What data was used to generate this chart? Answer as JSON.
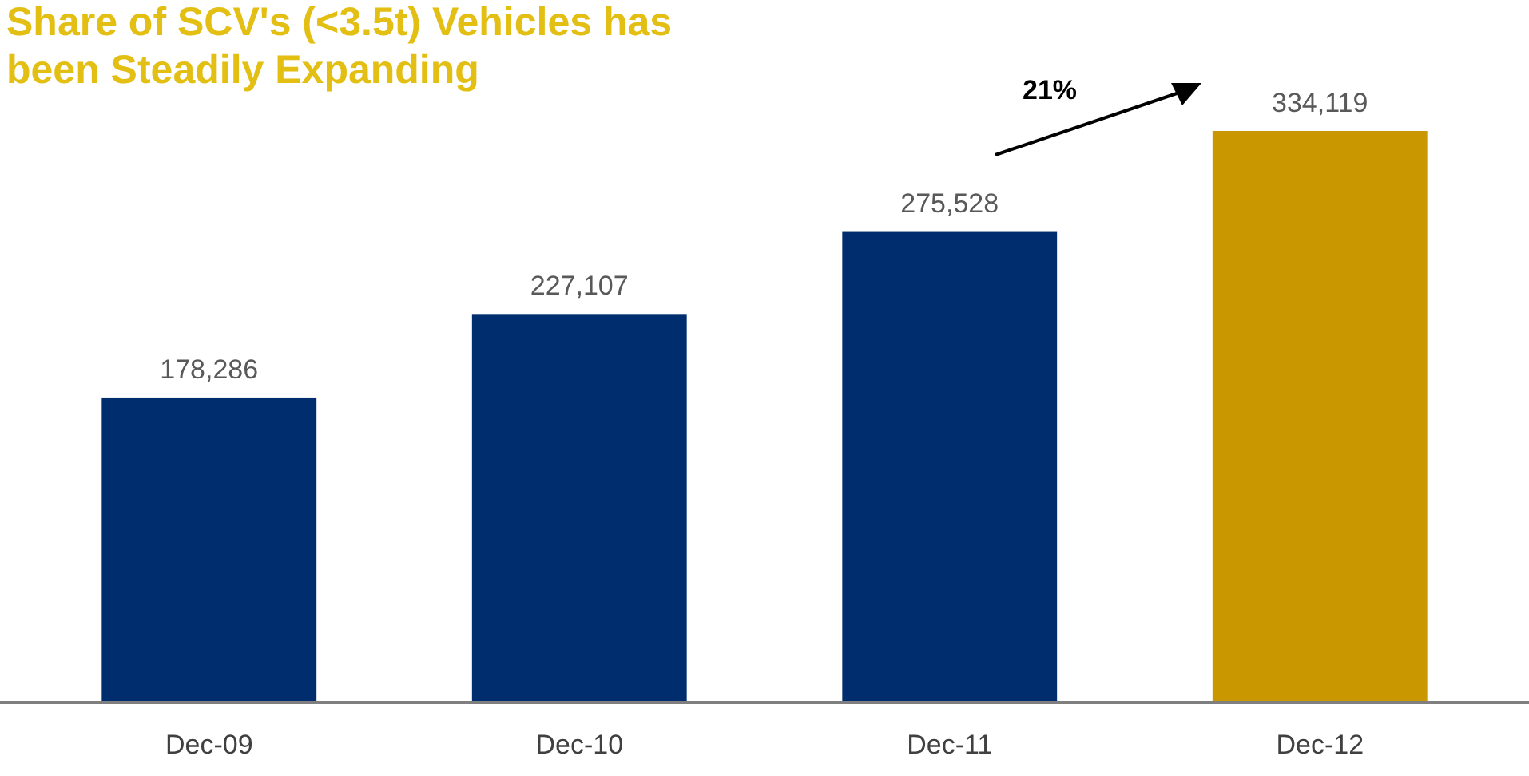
{
  "chart_data": {
    "type": "bar",
    "title": "Share of SCV's (<3.5t) Vehicles has been Steadily Expanding",
    "categories": [
      "Dec-09",
      "Dec-10",
      "Dec-11",
      "Dec-12"
    ],
    "values": [
      178286,
      227107,
      275528,
      334119
    ],
    "colors": [
      "#002d6e",
      "#002d6e",
      "#002d6e",
      "#c99700"
    ],
    "value_labels": [
      "178,286",
      "227,107",
      "275,528",
      "334,119"
    ],
    "tick_labels": "x",
    "annotations": [
      "21%"
    ]
  }
}
